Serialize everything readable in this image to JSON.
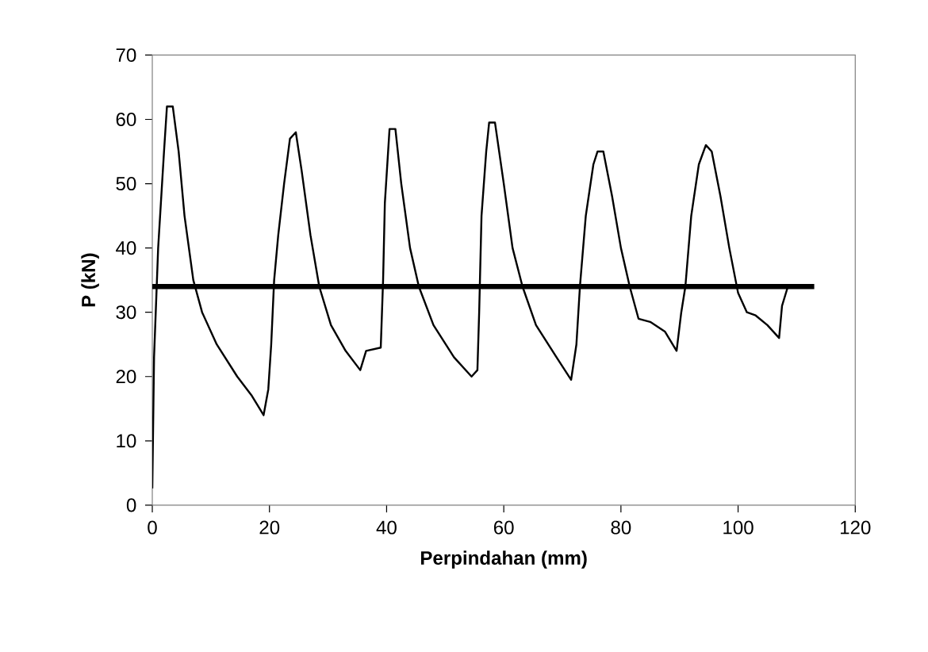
{
  "chart_data": {
    "type": "line",
    "xlabel": "Perpindahan (mm)",
    "ylabel": "P (kN)",
    "xlim": [
      0,
      120
    ],
    "ylim": [
      0,
      70
    ],
    "xticks": [
      0,
      20,
      40,
      60,
      80,
      100,
      120
    ],
    "yticks": [
      0,
      10,
      20,
      30,
      40,
      50,
      60,
      70
    ],
    "grid": false,
    "marker": "none",
    "line_style": "solid",
    "series": [
      {
        "color": "#000000",
        "x": [
          0,
          0.3,
          1,
          2,
          2.5,
          3.5,
          4.5,
          5.5,
          7,
          8.5,
          11,
          14.5,
          17,
          19,
          19.8,
          20.3,
          20.8,
          21.5,
          22.5,
          23.5,
          24.5,
          25.5,
          27,
          28.5,
          30.5,
          33,
          35.5,
          36.5,
          39,
          39.4,
          39.7,
          40.5,
          41.5,
          42.5,
          44,
          45.5,
          48,
          51.5,
          54.5,
          55.5,
          55.8,
          56.2,
          57,
          57.5,
          58.5,
          60,
          61.5,
          63.2,
          65.5,
          69,
          71.5,
          72.4,
          73,
          74,
          75.3,
          76,
          77,
          78.5,
          80,
          81.5,
          83,
          85,
          87.5,
          89.5,
          90.3,
          91,
          92,
          93.3,
          94.5,
          95.5,
          97,
          98.5,
          100,
          101.5,
          103,
          105,
          107,
          107.5,
          108.5
        ],
        "values": [
          2.6,
          23,
          40,
          55,
          62,
          62,
          55,
          45,
          35,
          30,
          25,
          20,
          17,
          14,
          18,
          25,
          35,
          42,
          50,
          57,
          58,
          52,
          42,
          34,
          28,
          24,
          21,
          24,
          24.5,
          35,
          47,
          58.5,
          58.5,
          50,
          40,
          34,
          28,
          23,
          20,
          21,
          30,
          45,
          55,
          59.5,
          59.5,
          50,
          40,
          34,
          28,
          23,
          19.5,
          25,
          34,
          45,
          53,
          55,
          55,
          48,
          40,
          34,
          29,
          28.5,
          27,
          24,
          30,
          34,
          45,
          53,
          56,
          55,
          48,
          40,
          33,
          30,
          29.5,
          28,
          26,
          31,
          34
        ]
      },
      {
        "color": "#000000",
        "x": [
          0,
          113
        ],
        "values": [
          34,
          34
        ]
      }
    ]
  }
}
